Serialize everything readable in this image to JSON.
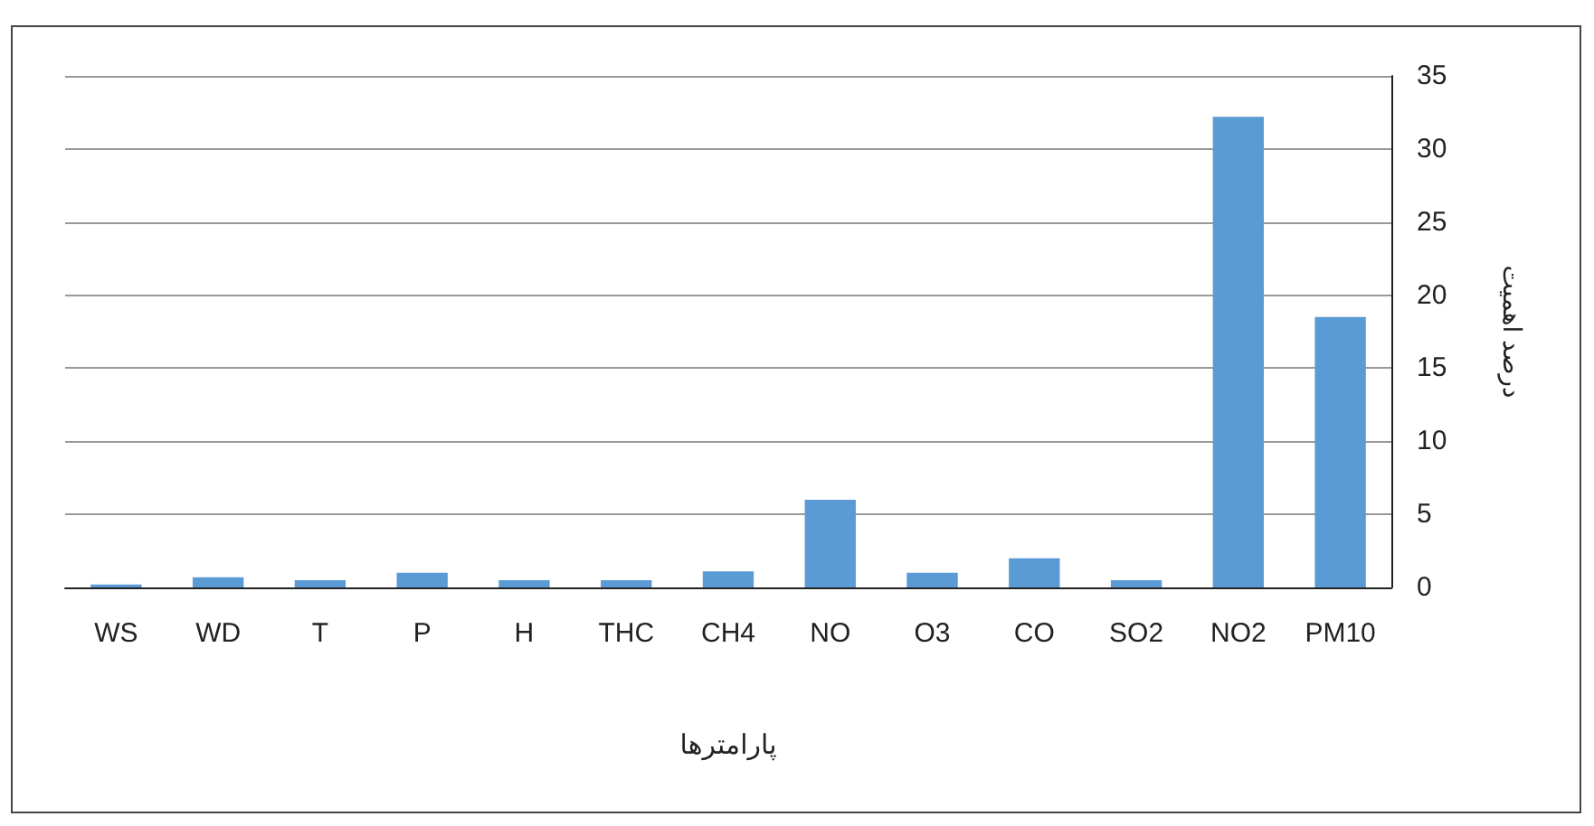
{
  "chart_data": {
    "type": "bar",
    "xlabel": "پارامترها",
    "ylabel": "درصد اهمیت",
    "categories": [
      "WS",
      "WD",
      "T",
      "P",
      "H",
      "THC",
      "CH4",
      "NO",
      "O3",
      "CO",
      "SO2",
      "NO2",
      "PM10"
    ],
    "values": [
      0.2,
      0.7,
      0.5,
      1.0,
      0.5,
      0.5,
      1.1,
      6.0,
      1.0,
      2.0,
      0.5,
      32.2,
      18.5
    ],
    "color": "#5b9bd5",
    "ylim": [
      0,
      35
    ],
    "yticks": [
      0,
      5,
      10,
      15,
      20,
      25,
      30,
      35
    ],
    "grid": true
  }
}
